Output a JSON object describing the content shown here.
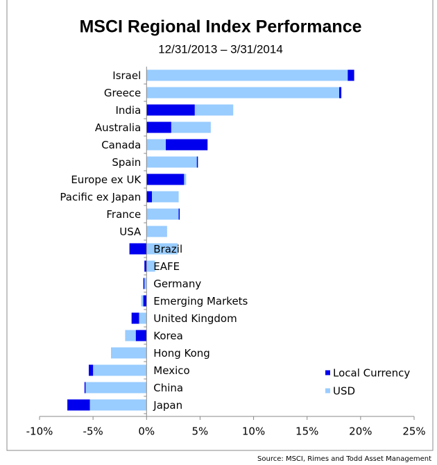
{
  "chart_data": {
    "type": "bar",
    "orientation": "horizontal",
    "title": "MSCI Regional Index Performance",
    "subtitle": "12/31/2013  – 3/31/2014",
    "source": "Source:  MSCI, Rimes and Todd Asset Management",
    "categories": [
      "Israel",
      "Greece",
      "India",
      "Australia",
      "Canada",
      "Spain",
      "Europe ex UK",
      "Pacific ex Japan",
      "France",
      "USA",
      "Brazil",
      "EAFE",
      "Germany",
      "Emerging Markets",
      "United Kingdom",
      "Korea",
      "Hong Kong",
      "Mexico",
      "China",
      "Japan"
    ],
    "series": [
      {
        "name": "Local Currency",
        "color": "#0000ee",
        "values": [
          19.4,
          18.2,
          4.5,
          2.3,
          5.7,
          4.8,
          3.5,
          0.5,
          3.1,
          1.9,
          -1.6,
          -0.2,
          -0.3,
          -0.3,
          -1.4,
          -1.0,
          -3.3,
          -5.4,
          -5.8,
          -7.4
        ]
      },
      {
        "name": "USD",
        "color": "#99ccff",
        "values": [
          18.8,
          18.0,
          8.1,
          6.0,
          1.8,
          4.7,
          3.7,
          3.0,
          3.0,
          1.9,
          2.9,
          0.8,
          -0.2,
          -0.5,
          -0.7,
          -2.0,
          -3.3,
          -5.0,
          -5.7,
          -5.3
        ]
      }
    ],
    "xlim": [
      -10,
      25
    ],
    "xticks": [
      {
        "value": -10,
        "label": "-10%"
      },
      {
        "value": -5,
        "label": "-5%"
      },
      {
        "value": 0,
        "label": "0%"
      },
      {
        "value": 5,
        "label": "5%"
      },
      {
        "value": 10,
        "label": "10%"
      },
      {
        "value": 15,
        "label": "15%"
      },
      {
        "value": 20,
        "label": "20%"
      },
      {
        "value": 25,
        "label": "25%"
      }
    ],
    "legend": "lower right"
  }
}
